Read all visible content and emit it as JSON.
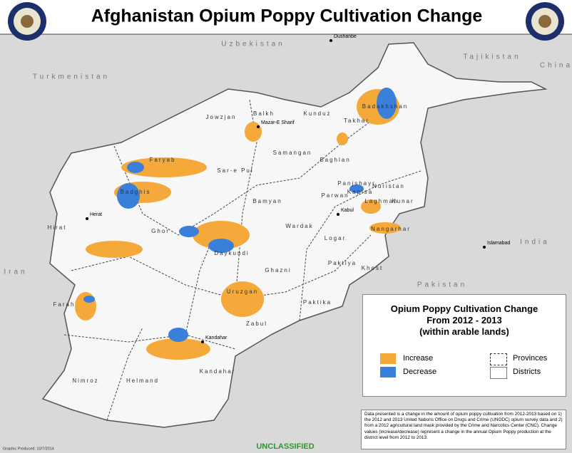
{
  "header": {
    "title": "Afghanistan Opium Poppy Cultivation Change"
  },
  "countries": [
    "Uzbekistan",
    "Tajikistan",
    "Turkmenistan",
    "China",
    "Iran",
    "Pakistan",
    "India"
  ],
  "cities": [
    "Dushanbe",
    "Islamabad",
    "Herat",
    "Mazar-E Sharif",
    "Kabul",
    "Kandahar"
  ],
  "provinces": [
    "Jowzjan",
    "Balkh",
    "Kunduz",
    "Takhar",
    "Badakhshan",
    "Samangan",
    "Baghlan",
    "Faryab",
    "Sar-e Pul",
    "Badghis",
    "Bamyan",
    "Panjshayr",
    "Kapisa",
    "Nuristan",
    "Laghman",
    "Kunar",
    "Parwan",
    "Wardak",
    "Logar",
    "Nangarhar",
    "Hirat",
    "Ghor",
    "Daykundi",
    "Ghazni",
    "Paktiya",
    "Khost",
    "Uruzgan",
    "Zabul",
    "Paktika",
    "Farah",
    "Nimroz",
    "Helmand",
    "Kandahar"
  ],
  "legend": {
    "title": [
      "Opium Poppy Cultivation Change",
      "From 2012 - 2013",
      "(within arable lands)"
    ],
    "items": [
      "Increase",
      "Decrease",
      "Provinces",
      "Districts"
    ]
  },
  "note": "Data presented is a change in the amount of opium poppy cultivation from 2012-2013 based on 1) the 2012 and 2013 United Nations Office on Drugs and Crime (UNODC) opium survey data and 2) from a 2012 agricultural land mask provided by the Crime and Narcotics Center (CNC). Change values (increase/decrease) represent a change in the annual Opium Poppy production at the district level from 2012 to 2013.",
  "footer": {
    "produced": "Graphic Produced: 10/7/2014",
    "classification": "UNCLASSIFIED"
  }
}
